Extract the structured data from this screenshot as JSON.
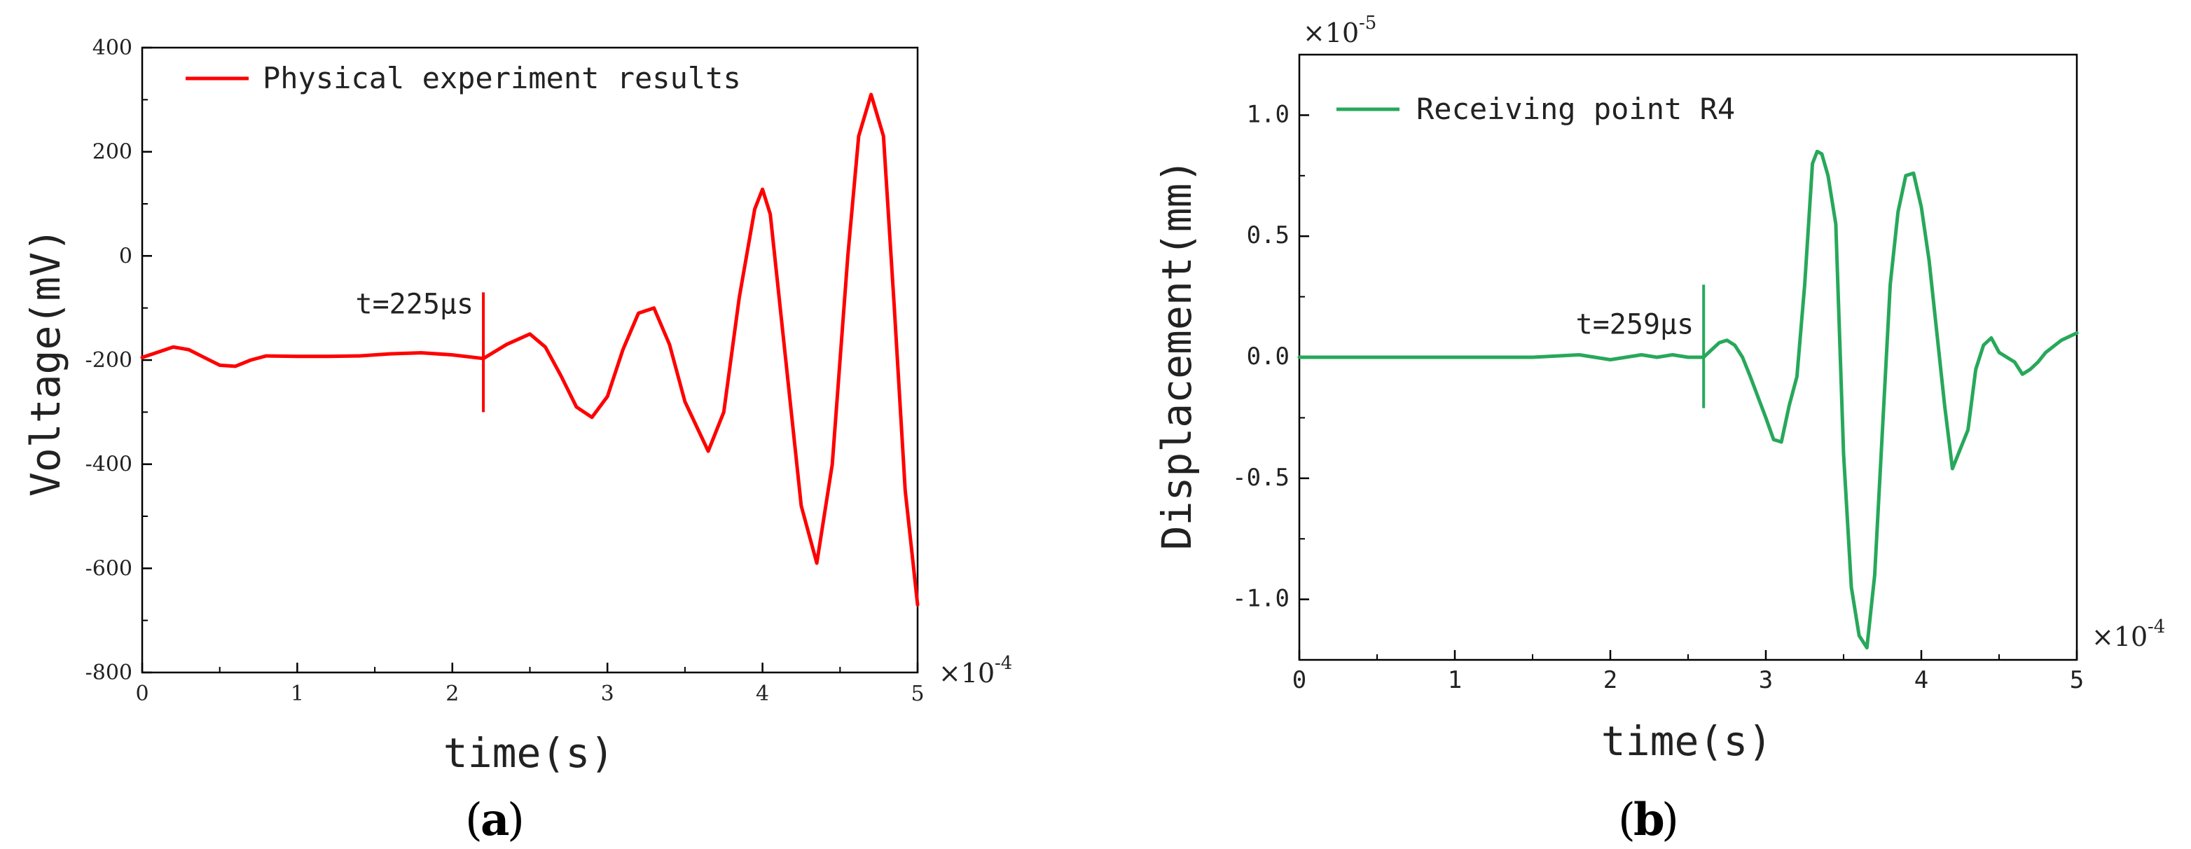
{
  "chart_data": [
    {
      "type": "line",
      "panel_label": "a",
      "xlabel": "time(s)",
      "ylabel": "Voltage(mV)",
      "x_multiplier": "×10",
      "x_multiplier_exp": "-4",
      "xlim": [
        0,
        5
      ],
      "ylim": [
        -800,
        400
      ],
      "xticks": [
        "0",
        "1",
        "2",
        "3",
        "4",
        "5"
      ],
      "yticks": [
        "400",
        "200",
        "0",
        "-200",
        "-400",
        "-600",
        "-800"
      ],
      "legend_position": "top-left",
      "series": [
        {
          "name": "Physical experiment results",
          "color": "#ff0000",
          "x": [
            0,
            0.1,
            0.2,
            0.3,
            0.4,
            0.5,
            0.6,
            0.7,
            0.8,
            1.0,
            1.2,
            1.4,
            1.6,
            1.8,
            2.0,
            2.2,
            2.35,
            2.5,
            2.6,
            2.7,
            2.8,
            2.9,
            3.0,
            3.1,
            3.2,
            3.3,
            3.4,
            3.5,
            3.65,
            3.75,
            3.85,
            3.95,
            4.0,
            4.05,
            4.15,
            4.25,
            4.35,
            4.45,
            4.55,
            4.62,
            4.7,
            4.78,
            4.85,
            4.92,
            5.0
          ],
          "y": [
            -195,
            -185,
            -175,
            -180,
            -195,
            -210,
            -212,
            -200,
            -192,
            -193,
            -193,
            -192,
            -188,
            -186,
            -190,
            -197,
            -170,
            -150,
            -175,
            -230,
            -290,
            -310,
            -270,
            -180,
            -110,
            -100,
            -170,
            -280,
            -375,
            -300,
            -80,
            90,
            128,
            80,
            -200,
            -480,
            -590,
            -400,
            0,
            230,
            310,
            230,
            -100,
            -450,
            -670
          ]
        }
      ],
      "annotations": [
        {
          "text": "t=225µs",
          "x": 2.2,
          "y_from": -300,
          "y_to": -70
        }
      ]
    },
    {
      "type": "line",
      "panel_label": "b",
      "xlabel": "time(s)",
      "ylabel": "Displacement(mm)",
      "x_multiplier": "×10",
      "x_multiplier_exp": "-4",
      "y_multiplier": "×10",
      "y_multiplier_exp": "-5",
      "xlim": [
        0,
        5
      ],
      "ylim": [
        -1.25,
        1.25
      ],
      "xticks": [
        "0",
        "1",
        "2",
        "3",
        "4",
        "5"
      ],
      "yticks": [
        "1.0",
        "0.5",
        "0.0",
        "-0.5",
        "-1.0"
      ],
      "legend_position": "top-left",
      "series": [
        {
          "name": "Receiving point R4",
          "color": "#27a85a",
          "x": [
            0,
            1.0,
            1.5,
            1.8,
            1.9,
            2.0,
            2.1,
            2.2,
            2.3,
            2.4,
            2.5,
            2.6,
            2.65,
            2.7,
            2.75,
            2.8,
            2.85,
            2.9,
            3.0,
            3.05,
            3.1,
            3.15,
            3.2,
            3.25,
            3.3,
            3.33,
            3.36,
            3.4,
            3.45,
            3.5,
            3.55,
            3.6,
            3.65,
            3.7,
            3.75,
            3.8,
            3.85,
            3.9,
            3.95,
            4.0,
            4.05,
            4.1,
            4.15,
            4.2,
            4.25,
            4.3,
            4.35,
            4.4,
            4.45,
            4.5,
            4.55,
            4.6,
            4.65,
            4.7,
            4.75,
            4.8,
            4.9,
            5.0
          ],
          "y": [
            0,
            0,
            0,
            0.01,
            0.0,
            -0.01,
            0.0,
            0.01,
            0.0,
            0.01,
            0.0,
            0.0,
            0.03,
            0.06,
            0.07,
            0.05,
            0.0,
            -0.08,
            -0.25,
            -0.34,
            -0.35,
            -0.2,
            -0.08,
            0.3,
            0.8,
            0.85,
            0.84,
            0.75,
            0.55,
            -0.4,
            -0.95,
            -1.15,
            -1.2,
            -0.9,
            -0.3,
            0.3,
            0.6,
            0.75,
            0.76,
            0.62,
            0.4,
            0.1,
            -0.2,
            -0.46,
            -0.38,
            -0.3,
            -0.05,
            0.05,
            0.08,
            0.02,
            0.0,
            -0.02,
            -0.07,
            -0.05,
            -0.02,
            0.02,
            0.07,
            0.1
          ]
        }
      ],
      "annotations": [
        {
          "text": "t=259µs",
          "x": 2.6,
          "y_from": -0.21,
          "y_to": 0.3
        }
      ]
    }
  ]
}
